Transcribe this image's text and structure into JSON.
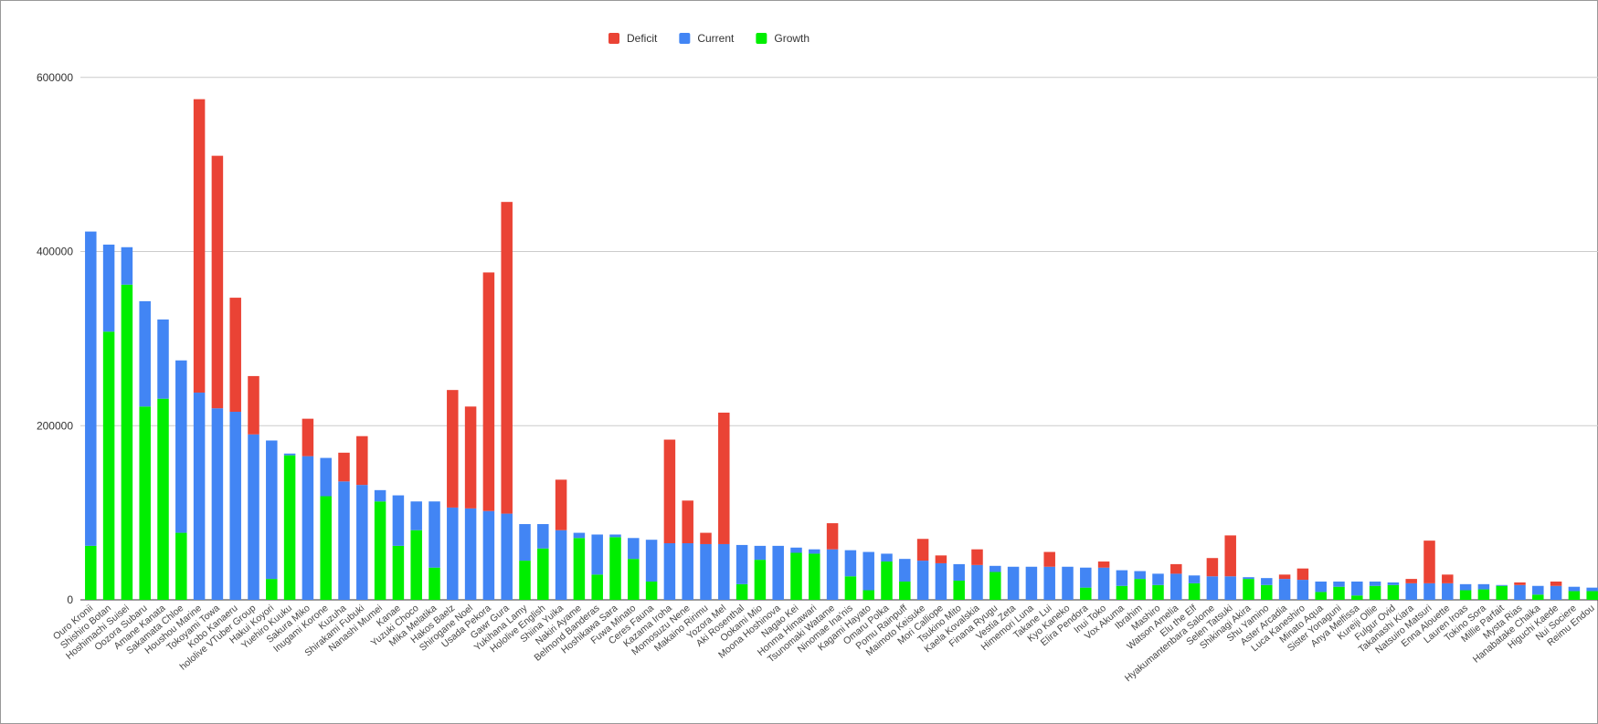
{
  "chart_data": {
    "type": "stacked_bar",
    "categories": [
      "Ouro Kronii",
      "Shishiro Botan",
      "Hoshimachi Suisei",
      "Oozora Subaru",
      "Amane Kanata",
      "Sakamata Chloe",
      "Houshou Marine",
      "Tokoyami Towa",
      "Kobo Kanaeru",
      "hololive VTuber Group",
      "Hakui Koyori",
      "Yuehiro Kuuku",
      "Sakura Miko",
      "Inugami Korone",
      "Kuzuha",
      "Shirakami Fubuki",
      "Nanashi Mumei",
      "Kanae",
      "Yuzuki Choco",
      "Mika Melatika",
      "Hakos Baelz",
      "Shirogane Noel",
      "Usada Pekora",
      "Gawr Gura",
      "Yukihana Lamy",
      "Hololive English",
      "Shiina Yuika",
      "Nakiri Ayame",
      "Belmond Banderas",
      "Hoshikawa Sara",
      "Fuwa Minato",
      "Ceres Fauna",
      "Kazama Iroha",
      "Momosuzu Nene",
      "Makaino Ririmu",
      "Yozora Mel",
      "Aki Rosenthal",
      "Ookami Mio",
      "Moona Hoshinova",
      "Nagao Kei",
      "Honma Himawari",
      "Tsunomaki Watame",
      "Ninomae Ina'nis",
      "Kagami Hayato",
      "Omaru Polka",
      "Pomu Rainpuff",
      "Maimoto Keisuke",
      "Mori Calliope",
      "Tsukino Mito",
      "Kaela Kovalskia",
      "Finana Ryugu",
      "Vestia Zeta",
      "Himemori Luna",
      "Takane Lui",
      "Kyo Kaneko",
      "Elira Pendora",
      "Inui Toko",
      "Vox Akuma",
      "Ibrahim",
      "Mashiro",
      "Watson Amelia",
      "Elu the Elf",
      "Hyakumantenbara Salome",
      "Selen Tatsuki",
      "Shikinagi Akira",
      "Shu Yamino",
      "Aster Arcadia",
      "Luca Kaneshiro",
      "Minato Aqua",
      "Sister Yonaguni",
      "Anya Melfissa",
      "Kureiji Ollie",
      "Fulgur Ovid",
      "Takanashi Kiara",
      "Natsuiro Matsuri",
      "Enna Alouette",
      "Lauren Iroas",
      "Tokino Sora",
      "Millie Parfait",
      "Mysta Rias",
      "Hanabatake Chaika",
      "Higuchi Kaede",
      "Nui Sociere",
      "Reimu Endou"
    ],
    "series": [
      {
        "name": "Deficit",
        "color": "#ea4335",
        "values": [
          0,
          0,
          0,
          0,
          0,
          0,
          337000,
          290000,
          131000,
          67000,
          0,
          0,
          43000,
          0,
          33000,
          56000,
          0,
          0,
          0,
          0,
          135000,
          117000,
          274000,
          358000,
          0,
          0,
          58000,
          0,
          0,
          0,
          0,
          0,
          119000,
          49000,
          13000,
          151000,
          0,
          0,
          0,
          0,
          0,
          30000,
          0,
          0,
          0,
          0,
          25000,
          9000,
          0,
          18000,
          0,
          0,
          0,
          17000,
          0,
          0,
          7000,
          0,
          0,
          0,
          11000,
          0,
          21000,
          47000,
          0,
          0,
          5000,
          13000,
          0,
          0,
          0,
          0,
          0,
          5000,
          49000,
          10000,
          0,
          0,
          0,
          3000,
          0,
          5000,
          0,
          0
        ]
      },
      {
        "name": "Current",
        "color": "#4285f4",
        "values": [
          361000,
          100000,
          43000,
          121000,
          91000,
          198000,
          238000,
          220000,
          216000,
          190000,
          159000,
          2000,
          165000,
          44000,
          136000,
          132000,
          13000,
          58000,
          33000,
          76000,
          106000,
          105000,
          102000,
          99000,
          42000,
          28000,
          80000,
          6000,
          46000,
          3000,
          24000,
          48000,
          65000,
          65000,
          64000,
          64000,
          45000,
          16000,
          62000,
          6000,
          5000,
          58000,
          30000,
          44000,
          9000,
          26000,
          45000,
          42000,
          19000,
          40000,
          7000,
          38000,
          38000,
          38000,
          38000,
          23000,
          37000,
          18000,
          9000,
          13000,
          30000,
          9000,
          27000,
          27000,
          2000,
          8000,
          24000,
          23000,
          12000,
          6000,
          16000,
          5000,
          3000,
          19000,
          19000,
          19000,
          7000,
          6000,
          1000,
          17000,
          10000,
          16000,
          5000,
          4000
        ]
      },
      {
        "name": "Growth",
        "color": "#00ee00",
        "values": [
          62000,
          308000,
          362000,
          222000,
          231000,
          77000,
          0,
          0,
          0,
          0,
          24000,
          166000,
          0,
          119000,
          0,
          0,
          113000,
          62000,
          80000,
          37000,
          0,
          0,
          0,
          0,
          45000,
          59000,
          0,
          71000,
          29000,
          72000,
          47000,
          21000,
          0,
          0,
          0,
          0,
          18000,
          46000,
          0,
          54000,
          53000,
          0,
          27000,
          11000,
          44000,
          21000,
          0,
          0,
          22000,
          0,
          32000,
          0,
          0,
          0,
          0,
          14000,
          0,
          16000,
          24000,
          17000,
          0,
          19000,
          0,
          0,
          24000,
          17000,
          0,
          0,
          9000,
          15000,
          5000,
          16000,
          17000,
          0,
          0,
          0,
          11000,
          12000,
          16000,
          0,
          6000,
          0,
          10000,
          10000
        ]
      }
    ],
    "ylim": [
      0,
      660000
    ],
    "yticks": [
      0,
      200000,
      400000,
      600000
    ],
    "grid": true,
    "legend": "top"
  }
}
